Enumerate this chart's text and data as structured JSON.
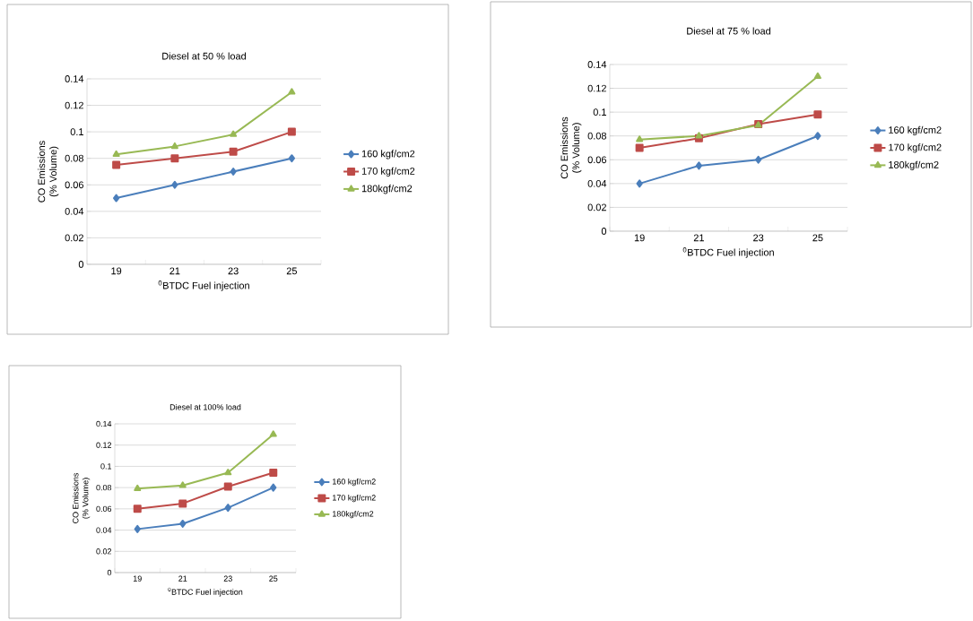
{
  "chart_data": [
    {
      "type": "line",
      "title": "Diesel at 50 % load",
      "xlabel": "$^{0}$BTDC Fuel injection",
      "ylabel": "CO Emissions\n(% Volume)",
      "categories": [
        "19",
        "21",
        "23",
        "25"
      ],
      "ylim": [
        0,
        0.14
      ],
      "yticks": [
        0,
        0.02,
        0.04,
        0.06,
        0.08,
        0.1,
        0.12,
        0.14
      ],
      "grid": "y",
      "legend": "right",
      "series": [
        {
          "name": "160 kgf/cm2",
          "color": "#4a7ebb",
          "marker": "diamond",
          "values": [
            0.05,
            0.06,
            0.07,
            0.08
          ]
        },
        {
          "name": "170 kgf/cm2",
          "color": "#be4b48",
          "marker": "square",
          "values": [
            0.075,
            0.08,
            0.085,
            0.1
          ]
        },
        {
          "name": "180kgf/cm2",
          "color": "#98b954",
          "marker": "triangle",
          "values": [
            0.083,
            0.089,
            0.098,
            0.13
          ]
        }
      ]
    },
    {
      "type": "line",
      "title": "Diesel at 75 % load",
      "xlabel": "$^{0}$BTDC Fuel injection",
      "ylabel": "CO Emissions\n(% Volume)",
      "categories": [
        "19",
        "21",
        "23",
        "25"
      ],
      "ylim": [
        0,
        0.14
      ],
      "yticks": [
        0,
        0.02,
        0.04,
        0.06,
        0.08,
        0.1,
        0.12,
        0.14
      ],
      "grid": "y",
      "legend": "right",
      "series": [
        {
          "name": "160 kgf/cm2",
          "color": "#4a7ebb",
          "marker": "diamond",
          "values": [
            0.04,
            0.055,
            0.06,
            0.08
          ]
        },
        {
          "name": "170 kgf/cm2",
          "color": "#be4b48",
          "marker": "square",
          "values": [
            0.07,
            0.078,
            0.09,
            0.098
          ]
        },
        {
          "name": "180kgf/cm2",
          "color": "#98b954",
          "marker": "triangle",
          "values": [
            0.077,
            0.08,
            0.089,
            0.13
          ]
        }
      ]
    },
    {
      "type": "line",
      "title": "Diesel at 100%  load",
      "xlabel": "$^{0}$BTDC Fuel injection",
      "ylabel": "CO Emissions\n(% Volume)",
      "categories": [
        "19",
        "21",
        "23",
        "25"
      ],
      "ylim": [
        0,
        0.14
      ],
      "yticks": [
        0,
        0.02,
        0.04,
        0.06,
        0.08,
        0.1,
        0.12,
        0.14
      ],
      "grid": "y",
      "legend": "right",
      "series": [
        {
          "name": "160 kgf/cm2",
          "color": "#4a7ebb",
          "marker": "diamond",
          "values": [
            0.041,
            0.046,
            0.061,
            0.08
          ]
        },
        {
          "name": "170 kgf/cm2",
          "color": "#be4b48",
          "marker": "square",
          "values": [
            0.06,
            0.065,
            0.081,
            0.094
          ]
        },
        {
          "name": "180kgf/cm2",
          "color": "#98b954",
          "marker": "triangle",
          "values": [
            0.079,
            0.082,
            0.094,
            0.13
          ]
        }
      ]
    }
  ]
}
